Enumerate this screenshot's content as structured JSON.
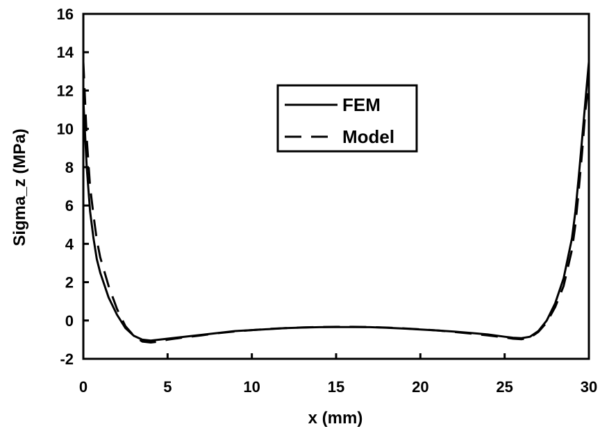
{
  "chart_data": {
    "type": "line",
    "title": "",
    "xlabel": "x (mm)",
    "ylabel": "Sigma_z (MPa)",
    "xlim": [
      0,
      30
    ],
    "ylim": [
      -2,
      16
    ],
    "xticks": [
      0,
      5,
      10,
      15,
      20,
      25,
      30
    ],
    "yticks": [
      -2,
      0,
      2,
      4,
      6,
      8,
      10,
      12,
      14,
      16
    ],
    "grid": false,
    "legend_position": "upper-center",
    "series": [
      {
        "name": "FEM",
        "style": "solid",
        "color": "#000000",
        "x": [
          0,
          0.2,
          0.4,
          0.6,
          0.8,
          1.0,
          1.5,
          2.0,
          2.5,
          3.0,
          3.5,
          4.0,
          4.5,
          5.0,
          6,
          7,
          8,
          9,
          10,
          11,
          12,
          13,
          14,
          15,
          16,
          17,
          18,
          19,
          20,
          21,
          22,
          23,
          24,
          25,
          25.5,
          26,
          26.5,
          27,
          27.5,
          28,
          28.5,
          29,
          29.2,
          29.4,
          29.6,
          29.8,
          30
        ],
        "values": [
          11.5,
          8.0,
          5.7,
          4.3,
          3.2,
          2.5,
          1.2,
          0.3,
          -0.4,
          -0.8,
          -1.0,
          -1.05,
          -1.0,
          -0.95,
          -0.85,
          -0.75,
          -0.65,
          -0.55,
          -0.5,
          -0.45,
          -0.4,
          -0.37,
          -0.35,
          -0.34,
          -0.34,
          -0.35,
          -0.38,
          -0.42,
          -0.47,
          -0.52,
          -0.58,
          -0.65,
          -0.73,
          -0.85,
          -0.9,
          -0.92,
          -0.85,
          -0.55,
          0.0,
          0.9,
          2.2,
          4.3,
          5.7,
          7.5,
          9.5,
          11.5,
          13.5
        ]
      },
      {
        "name": "Model",
        "style": "dashed",
        "color": "#000000",
        "x": [
          0,
          0.2,
          0.4,
          0.6,
          0.8,
          1.0,
          1.5,
          2.0,
          2.5,
          3.0,
          3.5,
          4.0,
          4.5,
          5.0,
          6,
          7,
          8,
          9,
          10,
          11,
          12,
          13,
          14,
          15,
          16,
          17,
          18,
          19,
          20,
          21,
          22,
          23,
          24,
          25,
          25.5,
          26,
          26.5,
          27,
          27.5,
          28,
          28.5,
          29,
          29.2,
          29.4,
          29.6,
          29.8,
          30
        ],
        "values": [
          13.5,
          9.5,
          7.0,
          5.5,
          4.2,
          3.3,
          1.8,
          0.6,
          -0.3,
          -0.8,
          -1.1,
          -1.15,
          -1.1,
          -1.0,
          -0.88,
          -0.78,
          -0.66,
          -0.57,
          -0.5,
          -0.44,
          -0.4,
          -0.36,
          -0.34,
          -0.33,
          -0.33,
          -0.34,
          -0.37,
          -0.41,
          -0.46,
          -0.52,
          -0.6,
          -0.68,
          -0.78,
          -0.88,
          -0.95,
          -0.98,
          -0.9,
          -0.6,
          -0.1,
          0.7,
          1.8,
          3.7,
          5.0,
          6.8,
          8.8,
          11.0,
          12.5
        ]
      }
    ]
  }
}
